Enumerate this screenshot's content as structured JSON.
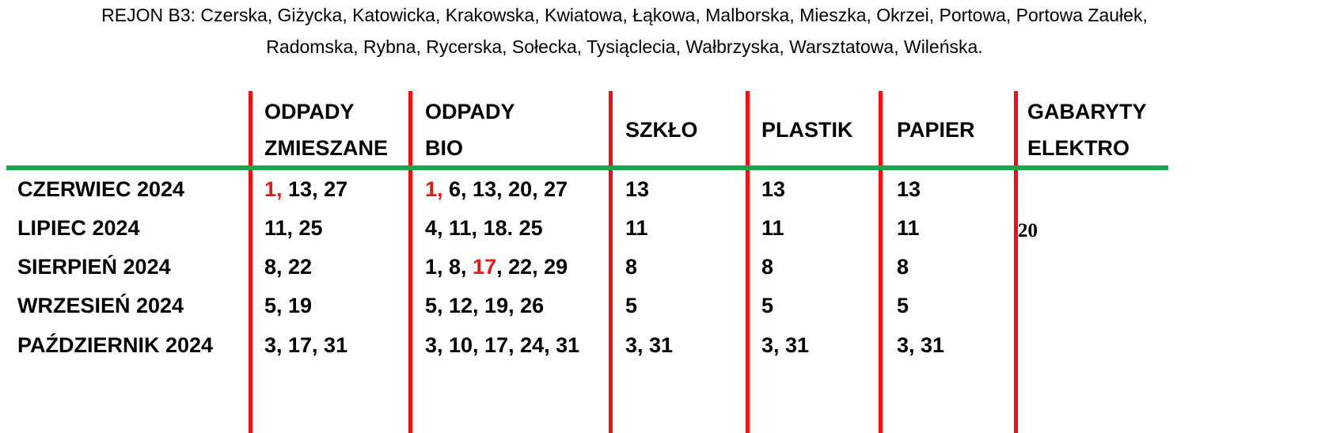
{
  "title_line1": "REJON B3: Czerska, Giżycka, Katowicka, Krakowska, Kwiatowa, Łąkowa, Malborska, Mieszka, Okrzei, Portowa, Portowa Zaułek,",
  "title_line2": "Radomska, Rybna, Rycerska, Sołecka, Tysiąclecia, Wałbrzyska, Warsztatowa, Wileńska.",
  "colors": {
    "divider_vertical": "#ee1111",
    "divider_horizontal": "#1aa64a",
    "highlight": "#e81818"
  },
  "headers": [
    {
      "line1": "ODPADY",
      "line2": "ZMIESZANE"
    },
    {
      "line1": "ODPADY",
      "line2": "BIO"
    },
    {
      "line1": "SZKŁO",
      "line2": ""
    },
    {
      "line1": "PLASTIK",
      "line2": ""
    },
    {
      "line1": "PAPIER",
      "line2": ""
    },
    {
      "line1": "GABARYTY",
      "line2": "ELEKTRO"
    }
  ],
  "rows": [
    {
      "month": "CZERWIEC 2024",
      "cells": [
        [
          {
            "t": "1,",
            "red": true
          },
          {
            "t": " 13, 27"
          }
        ],
        [
          {
            "t": "1,",
            "red": true
          },
          {
            "t": " 6, 13, 20, 27"
          }
        ],
        [
          {
            "t": "13"
          }
        ],
        [
          {
            "t": "13"
          }
        ],
        [
          {
            "t": "13"
          }
        ],
        []
      ]
    },
    {
      "month": "LIPIEC 2024",
      "cells": [
        [
          {
            "t": "11, 25"
          }
        ],
        [
          {
            "t": "4, 11, 18. 25"
          }
        ],
        [
          {
            "t": "11"
          }
        ],
        [
          {
            "t": "11"
          }
        ],
        [
          {
            "t": "11"
          }
        ],
        [
          {
            "t": "20",
            "serif": true
          }
        ]
      ]
    },
    {
      "month": "SIERPIEŃ 2024",
      "cells": [
        [
          {
            "t": "8, 22"
          }
        ],
        [
          {
            "t": "1, 8, "
          },
          {
            "t": "17",
            "red": true
          },
          {
            "t": ", 22, 29"
          }
        ],
        [
          {
            "t": "8"
          }
        ],
        [
          {
            "t": "8"
          }
        ],
        [
          {
            "t": "8"
          }
        ],
        []
      ]
    },
    {
      "month": "WRZESIEŃ 2024",
      "cells": [
        [
          {
            "t": "5, 19"
          }
        ],
        [
          {
            "t": "5, 12, 19, 26"
          }
        ],
        [
          {
            "t": "5"
          }
        ],
        [
          {
            "t": "5"
          }
        ],
        [
          {
            "t": "5"
          }
        ],
        []
      ]
    },
    {
      "month": "PAŹDZIERNIK 2024",
      "cells": [
        [
          {
            "t": "3, 17, 31"
          }
        ],
        [
          {
            "t": "3, 10, 17, 24, 31"
          }
        ],
        [
          {
            "t": "3, 31"
          }
        ],
        [
          {
            "t": "3, 31"
          }
        ],
        [
          {
            "t": "3, 31"
          }
        ],
        []
      ]
    }
  ]
}
